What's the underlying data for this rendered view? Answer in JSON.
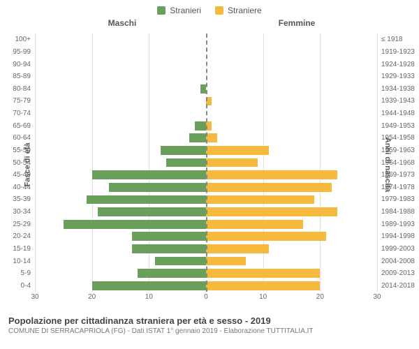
{
  "chart": {
    "type": "population-pyramid",
    "legend": {
      "male": {
        "label": "Stranieri",
        "color": "#6a9e5b"
      },
      "female": {
        "label": "Straniere",
        "color": "#f5b93e"
      }
    },
    "columns": {
      "left": "Maschi",
      "right": "Femmine"
    },
    "y_axis_left_label": "Fasce di età",
    "y_axis_right_label": "Anni di nascita",
    "x_max": 30,
    "x_ticks_left": [
      30,
      20,
      10,
      0
    ],
    "x_ticks_right": [
      0,
      10,
      20,
      30
    ],
    "grid_color": "#e0e0e0",
    "background_color": "#ffffff",
    "bar_height_ratio": 0.72,
    "tick_fontsize": 10,
    "label_fontsize": 11,
    "rows": [
      {
        "age": "100+",
        "birth": "≤ 1918",
        "m": 0,
        "f": 0
      },
      {
        "age": "95-99",
        "birth": "1919-1923",
        "m": 0,
        "f": 0
      },
      {
        "age": "90-94",
        "birth": "1924-1928",
        "m": 0,
        "f": 0
      },
      {
        "age": "85-89",
        "birth": "1929-1933",
        "m": 0,
        "f": 0
      },
      {
        "age": "80-84",
        "birth": "1934-1938",
        "m": 1,
        "f": 0
      },
      {
        "age": "75-79",
        "birth": "1939-1943",
        "m": 0,
        "f": 1
      },
      {
        "age": "70-74",
        "birth": "1944-1948",
        "m": 0,
        "f": 0
      },
      {
        "age": "65-69",
        "birth": "1949-1953",
        "m": 2,
        "f": 1
      },
      {
        "age": "60-64",
        "birth": "1954-1958",
        "m": 3,
        "f": 2
      },
      {
        "age": "55-59",
        "birth": "1959-1963",
        "m": 8,
        "f": 11
      },
      {
        "age": "50-54",
        "birth": "1964-1968",
        "m": 7,
        "f": 9
      },
      {
        "age": "45-49",
        "birth": "1969-1973",
        "m": 20,
        "f": 23
      },
      {
        "age": "40-44",
        "birth": "1974-1978",
        "m": 17,
        "f": 22
      },
      {
        "age": "35-39",
        "birth": "1979-1983",
        "m": 21,
        "f": 19
      },
      {
        "age": "30-34",
        "birth": "1984-1988",
        "m": 19,
        "f": 23
      },
      {
        "age": "25-29",
        "birth": "1989-1993",
        "m": 25,
        "f": 17
      },
      {
        "age": "20-24",
        "birth": "1994-1998",
        "m": 13,
        "f": 21
      },
      {
        "age": "15-19",
        "birth": "1999-2003",
        "m": 13,
        "f": 11
      },
      {
        "age": "10-14",
        "birth": "2004-2008",
        "m": 9,
        "f": 7
      },
      {
        "age": "5-9",
        "birth": "2009-2013",
        "m": 12,
        "f": 20
      },
      {
        "age": "0-4",
        "birth": "2014-2018",
        "m": 20,
        "f": 20
      }
    ]
  },
  "footer": {
    "title": "Popolazione per cittadinanza straniera per età e sesso - 2019",
    "subtitle": "COMUNE DI SERRACAPRIOLA (FG) - Dati ISTAT 1° gennaio 2019 - Elaborazione TUTTITALIA.IT"
  }
}
